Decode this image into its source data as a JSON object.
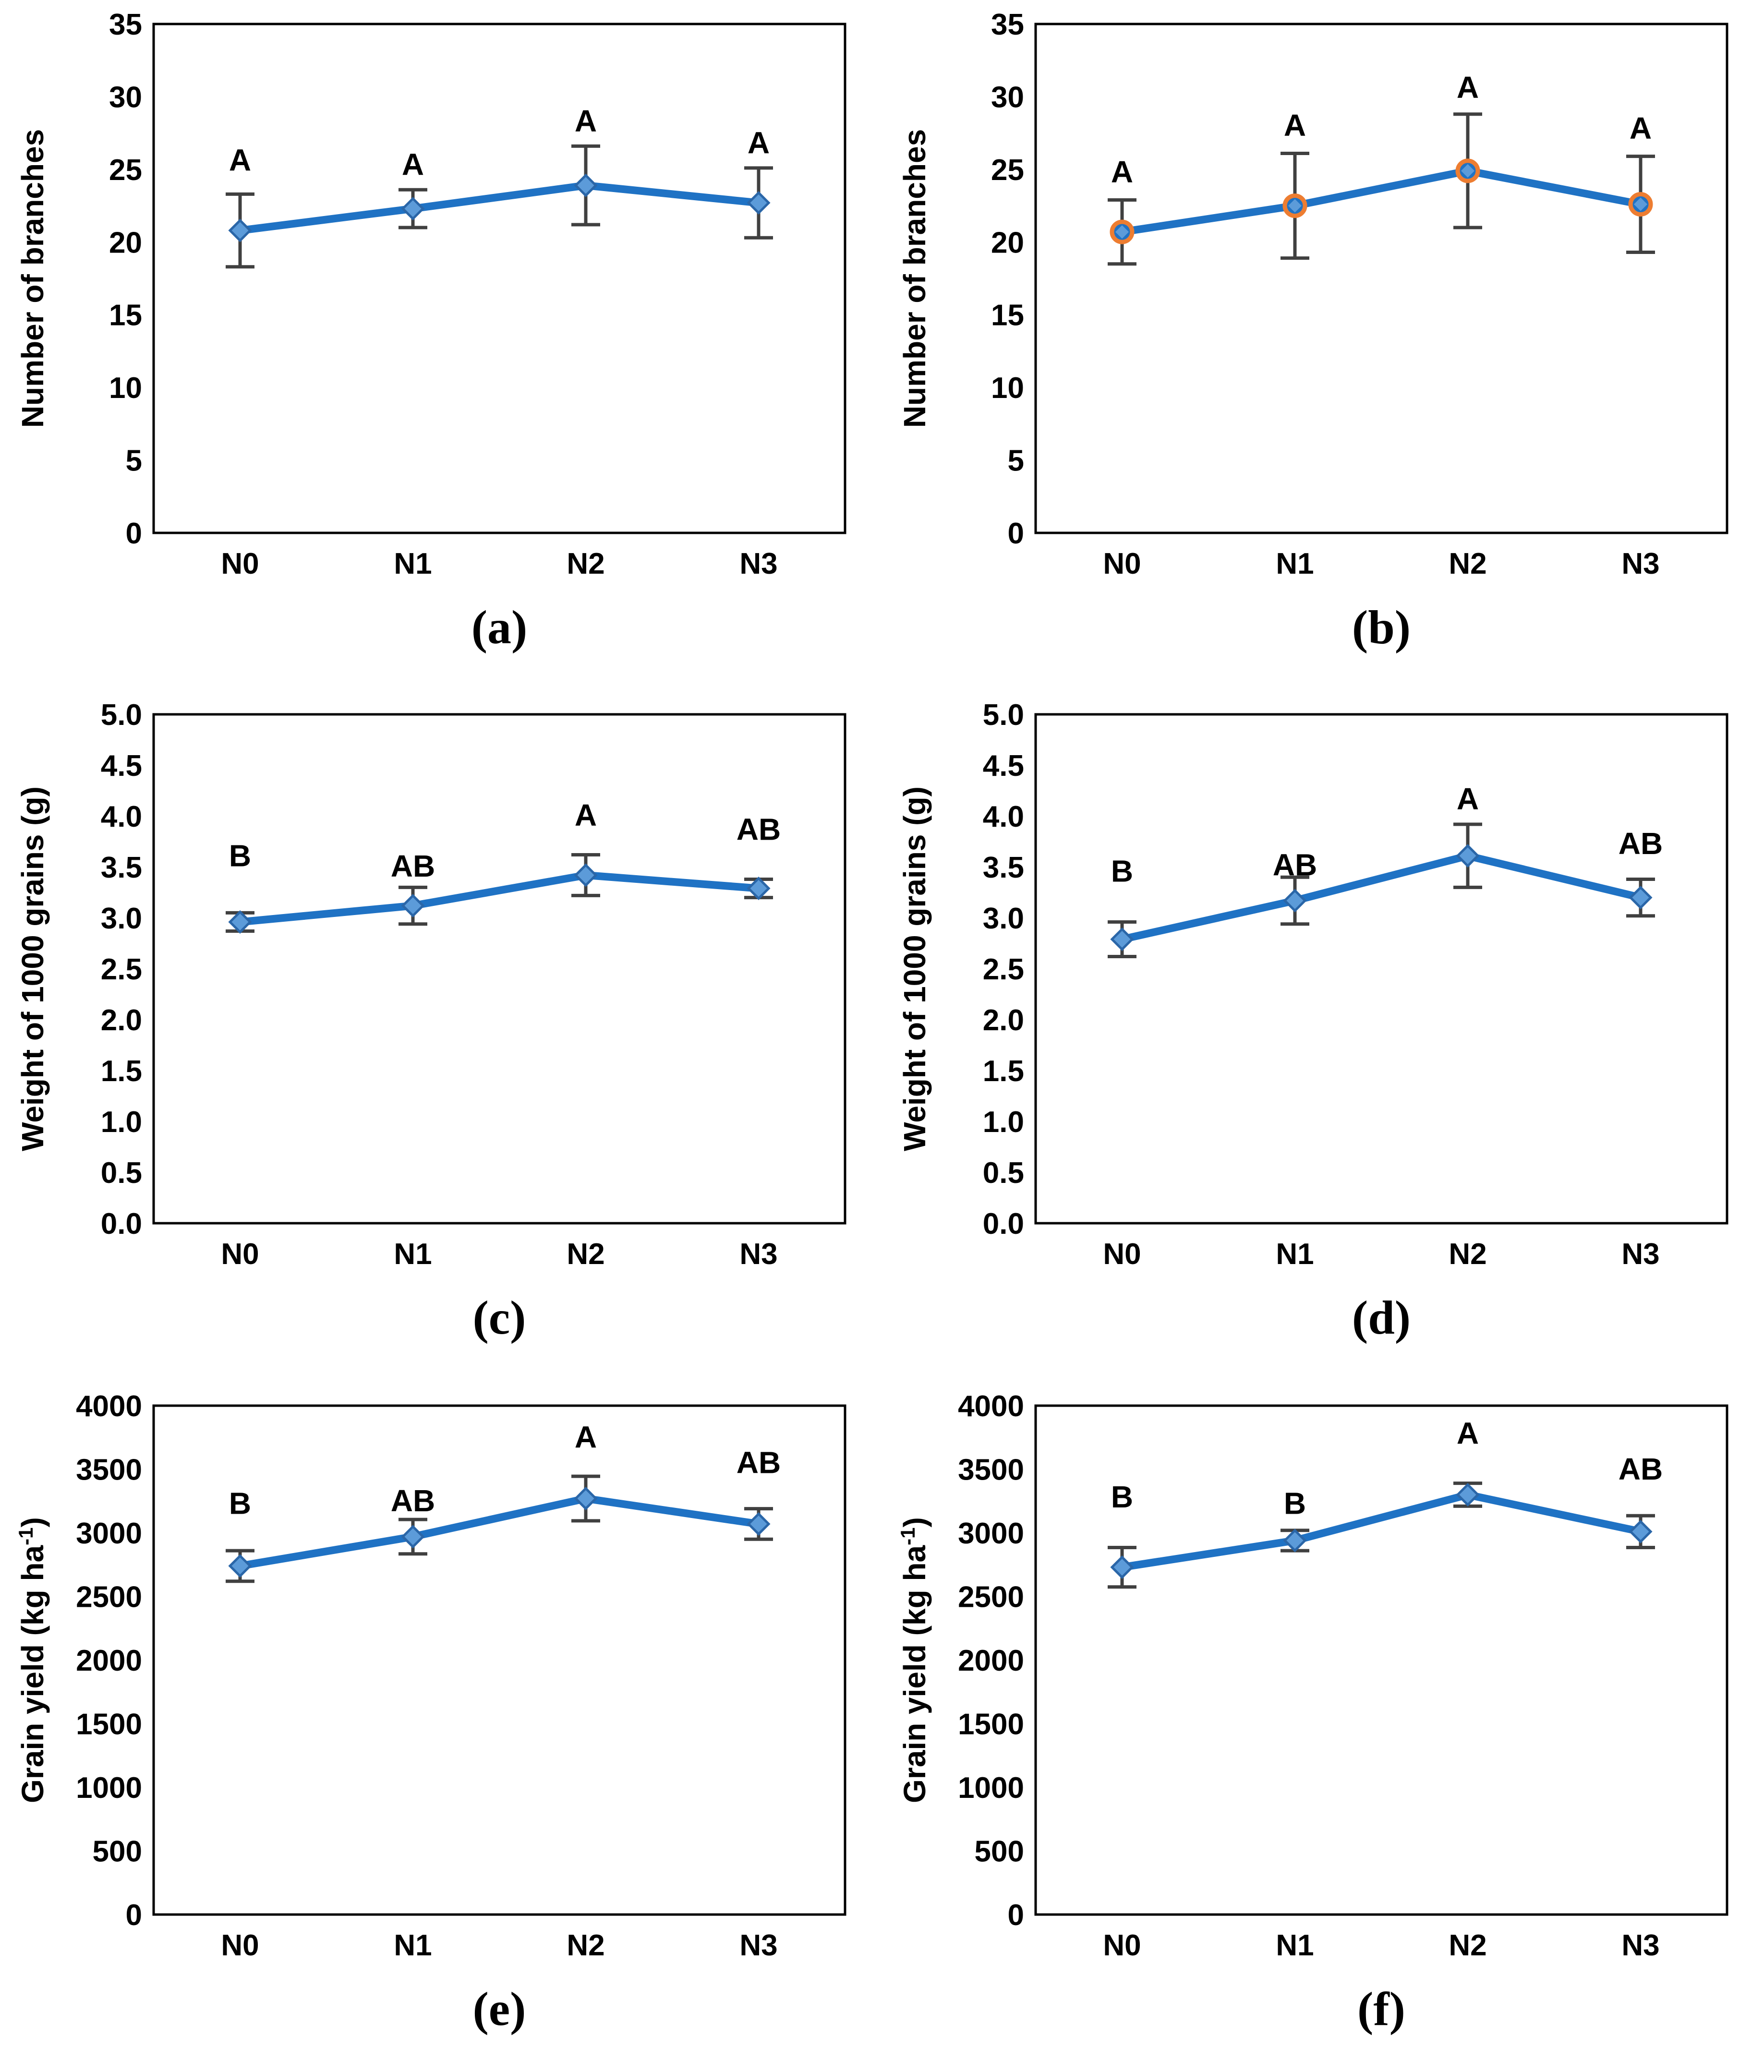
{
  "colors": {
    "line": "#1F72C4",
    "marker_fill": "#5C9BD9",
    "marker_edge": "#2A66A8",
    "orange_ring": "#ED7D31",
    "letter": "#2E74B5",
    "error_bar": "#404040",
    "axis": "#000000",
    "background": "#FFFFFF"
  },
  "chart_data": [
    {
      "type": "line",
      "panel_label": "(a)",
      "ylabel": "Number of branches",
      "ylim": [
        0,
        35
      ],
      "ystep": 5,
      "ydecimals": 0,
      "grid": "off",
      "legend": "none",
      "categories": [
        "N0",
        "N1",
        "N2",
        "N3"
      ],
      "values": [
        20.8,
        22.3,
        23.9,
        22.7
      ],
      "errors": [
        2.5,
        1.3,
        2.7,
        2.4
      ],
      "letters": [
        "A",
        "A",
        "A",
        "A"
      ],
      "letter_y": [
        25.7,
        25.4,
        28.4,
        26.9
      ],
      "marker": "diamond"
    },
    {
      "type": "line",
      "panel_label": "(b)",
      "ylabel": "Number of branches",
      "ylim": [
        0,
        35
      ],
      "ystep": 5,
      "ydecimals": 0,
      "grid": "off",
      "legend": "none",
      "categories": [
        "N0",
        "N1",
        "N2",
        "N3"
      ],
      "values": [
        20.7,
        22.5,
        24.9,
        22.6
      ],
      "errors": [
        2.2,
        3.6,
        3.9,
        3.3
      ],
      "letters": [
        "A",
        "A",
        "A",
        "A"
      ],
      "letter_y": [
        24.9,
        28.1,
        30.7,
        27.9
      ],
      "marker": "diamond_ring"
    },
    {
      "type": "line",
      "panel_label": "(c)",
      "ylabel": "Weight of 1000 grains (g)",
      "ylim": [
        0,
        5
      ],
      "ystep": 0.5,
      "ydecimals": 1,
      "grid": "off",
      "legend": "none",
      "categories": [
        "N0",
        "N1",
        "N2",
        "N3"
      ],
      "values": [
        2.96,
        3.12,
        3.42,
        3.29
      ],
      "errors": [
        0.09,
        0.18,
        0.2,
        0.09
      ],
      "letters": [
        "B",
        "AB",
        "A",
        "AB"
      ],
      "letter_y": [
        3.62,
        3.52,
        4.02,
        3.88
      ],
      "marker": "diamond"
    },
    {
      "type": "line",
      "panel_label": "(d)",
      "ylabel": "Weight of 1000 grains (g)",
      "ylim": [
        0,
        5
      ],
      "ystep": 0.5,
      "ydecimals": 1,
      "grid": "off",
      "legend": "none",
      "categories": [
        "N0",
        "N1",
        "N2",
        "N3"
      ],
      "values": [
        2.79,
        3.17,
        3.61,
        3.2
      ],
      "errors": [
        0.17,
        0.23,
        0.31,
        0.18
      ],
      "letters": [
        "B",
        "AB",
        "A",
        "AB"
      ],
      "letter_y": [
        3.47,
        3.53,
        4.18,
        3.74
      ],
      "marker": "diamond"
    },
    {
      "type": "line",
      "panel_label": "(e)",
      "ylabel": "Grain yield (kg ha⁻¹)",
      "ylim": [
        0,
        4000
      ],
      "ystep": 500,
      "ydecimals": 0,
      "grid": "off",
      "legend": "none",
      "categories": [
        "N0",
        "N1",
        "N2",
        "N3"
      ],
      "values": [
        2740,
        2970,
        3270,
        3070
      ],
      "errors": [
        120,
        135,
        175,
        120
      ],
      "letters": [
        "B",
        "AB",
        "A",
        "AB"
      ],
      "letter_y": [
        3240,
        3260,
        3760,
        3560
      ],
      "marker": "diamond"
    },
    {
      "type": "line",
      "panel_label": "(f)",
      "ylabel": "Grain yield (kg ha⁻¹)",
      "ylim": [
        0,
        4000
      ],
      "ystep": 500,
      "ydecimals": 0,
      "grid": "off",
      "legend": "none",
      "categories": [
        "N0",
        "N1",
        "N2",
        "N3"
      ],
      "values": [
        2730,
        2940,
        3300,
        3010
      ],
      "errors": [
        155,
        80,
        90,
        125
      ],
      "letters": [
        "B",
        "B",
        "A",
        "AB"
      ],
      "letter_y": [
        3290,
        3240,
        3790,
        3510
      ],
      "marker": "diamond"
    }
  ]
}
